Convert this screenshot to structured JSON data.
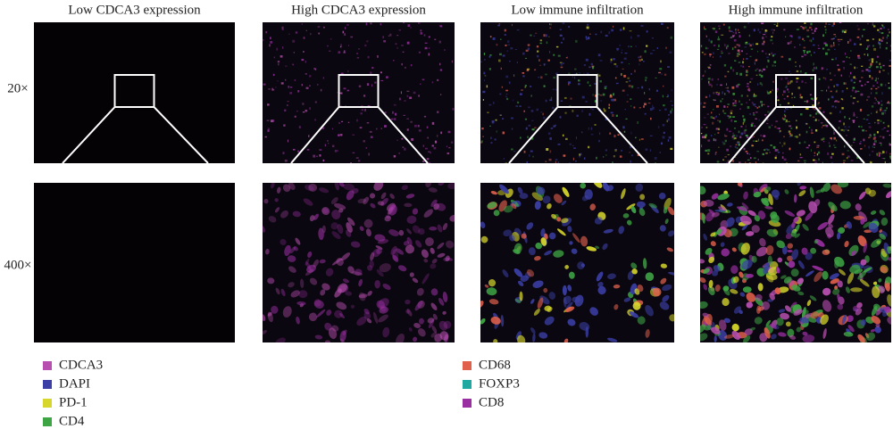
{
  "columns": [
    "Low CDCA3 expression",
    "High CDCA3 expression",
    "Low immune infiltration",
    "High immune infiltration"
  ],
  "rows": [
    "20×",
    "400×"
  ],
  "legend": [
    {
      "label": "CDCA3",
      "color": "#b84fb0"
    },
    {
      "label": "DAPI",
      "color": "#3b3fa6"
    },
    {
      "label": "PD-1",
      "color": "#d6d62c"
    },
    {
      "label": "CD4",
      "color": "#3ea544"
    },
    {
      "label": "CD68",
      "color": "#e0604c"
    },
    {
      "label": "FOXP3",
      "color": "#1fa9a1"
    },
    {
      "label": "CD8",
      "color": "#9a2fa2"
    }
  ]
}
